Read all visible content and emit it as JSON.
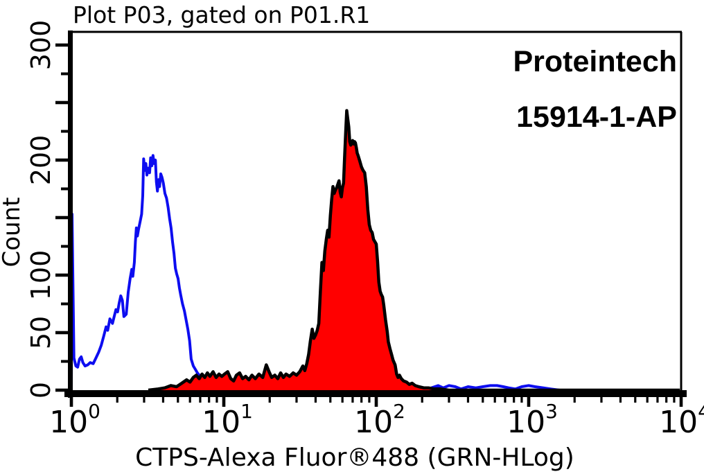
{
  "title": "Plot P03, gated on P01.R1",
  "watermark": {
    "line1": "Proteintech",
    "line2": "15914-1-AP"
  },
  "colors": {
    "control_curve": "#0d0df0",
    "sample_fill": "#ff0000",
    "sample_outline": "#000000",
    "axis": "#000000",
    "background": "#ffffff"
  },
  "chart_data": {
    "type": "area",
    "title": "Plot P03, gated on P01.R1",
    "xlabel": "CTPS-Alexa Fluor®488 (GRN-HLog)",
    "ylabel": "Count",
    "x_scale": "log10",
    "xlim": [
      1,
      10000
    ],
    "ylim": [
      0,
      312
    ],
    "grid": false,
    "legend_position": "none",
    "x_major_tick_exponents": [
      0,
      1,
      2,
      3,
      4
    ],
    "x_tick_labels": [
      {
        "base": "10",
        "exp": "0"
      },
      {
        "base": "10",
        "exp": "1"
      },
      {
        "base": "10",
        "exp": "2"
      },
      {
        "base": "10",
        "exp": "3"
      },
      {
        "base": "10",
        "exp": "4"
      }
    ],
    "y_major_ticks": [
      0,
      50,
      100,
      150,
      200,
      250,
      300
    ],
    "y_minor_ticks": [
      25,
      75,
      125,
      175,
      225,
      275
    ],
    "y_labeled_ticks": [
      0,
      50,
      100,
      200,
      300
    ],
    "series": [
      {
        "name": "control-blue-outline",
        "style": "line",
        "color": "#0d0df0",
        "points": [
          [
            1.0,
            0
          ],
          [
            1.01,
            153
          ],
          [
            1.02,
            110
          ],
          [
            1.04,
            28
          ],
          [
            1.07,
            21
          ],
          [
            1.1,
            20
          ],
          [
            1.13,
            27
          ],
          [
            1.16,
            29
          ],
          [
            1.19,
            24
          ],
          [
            1.23,
            21
          ],
          [
            1.28,
            22
          ],
          [
            1.33,
            24
          ],
          [
            1.39,
            23
          ],
          [
            1.45,
            28
          ],
          [
            1.51,
            33
          ],
          [
            1.57,
            39
          ],
          [
            1.63,
            47
          ],
          [
            1.69,
            55
          ],
          [
            1.73,
            52
          ],
          [
            1.79,
            62
          ],
          [
            1.86,
            58
          ],
          [
            1.91,
            64
          ],
          [
            1.96,
            70
          ],
          [
            2.01,
            68
          ],
          [
            2.06,
            76
          ],
          [
            2.11,
            82
          ],
          [
            2.16,
            78
          ],
          [
            2.21,
            64
          ],
          [
            2.29,
            66
          ],
          [
            2.36,
            85
          ],
          [
            2.43,
            97
          ],
          [
            2.49,
            105
          ],
          [
            2.53,
            99
          ],
          [
            2.59,
            111
          ],
          [
            2.63,
            129
          ],
          [
            2.67,
            141
          ],
          [
            2.71,
            134
          ],
          [
            2.76,
            140
          ],
          [
            2.83,
            147
          ],
          [
            2.89,
            153
          ],
          [
            2.94,
            169
          ],
          [
            2.98,
            201
          ],
          [
            3.03,
            191
          ],
          [
            3.08,
            197
          ],
          [
            3.13,
            187
          ],
          [
            3.19,
            193
          ],
          [
            3.26,
            189
          ],
          [
            3.31,
            202
          ],
          [
            3.37,
            195
          ],
          [
            3.43,
            204
          ],
          [
            3.49,
            197
          ],
          [
            3.56,
            200
          ],
          [
            3.61,
            181
          ],
          [
            3.67,
            173
          ],
          [
            3.73,
            183
          ],
          [
            3.79,
            177
          ],
          [
            3.86,
            188
          ],
          [
            3.93,
            185
          ],
          [
            4.01,
            180
          ],
          [
            4.11,
            171
          ],
          [
            4.21,
            167
          ],
          [
            4.31,
            159
          ],
          [
            4.41,
            149
          ],
          [
            4.51,
            141
          ],
          [
            4.61,
            129
          ],
          [
            4.71,
            119
          ],
          [
            4.81,
            106
          ],
          [
            4.91,
            101
          ],
          [
            5.01,
            97
          ],
          [
            5.11,
            89
          ],
          [
            5.21,
            83
          ],
          [
            5.36,
            75
          ],
          [
            5.51,
            69
          ],
          [
            5.66,
            61
          ],
          [
            5.81,
            53
          ],
          [
            5.96,
            43
          ],
          [
            6.11,
            27
          ],
          [
            6.31,
            21
          ],
          [
            6.51,
            18
          ],
          [
            6.71,
            15
          ],
          [
            7.01,
            12
          ],
          [
            7.41,
            9
          ],
          [
            7.81,
            6
          ],
          [
            8.31,
            4
          ],
          [
            9.0,
            3
          ],
          [
            10,
            2
          ],
          [
            12,
            1
          ],
          [
            15,
            1
          ],
          [
            20,
            1
          ],
          [
            25,
            0
          ],
          [
            40,
            0
          ],
          [
            80,
            0
          ],
          [
            150,
            0
          ],
          [
            200,
            1
          ],
          [
            230,
            2
          ],
          [
            255,
            4
          ],
          [
            275,
            2
          ],
          [
            300,
            4
          ],
          [
            330,
            3
          ],
          [
            360,
            1
          ],
          [
            400,
            3
          ],
          [
            450,
            2
          ],
          [
            500,
            3
          ],
          [
            560,
            4
          ],
          [
            620,
            4
          ],
          [
            680,
            3
          ],
          [
            740,
            2
          ],
          [
            820,
            1
          ],
          [
            900,
            3
          ],
          [
            1000,
            4
          ],
          [
            1100,
            3
          ],
          [
            1250,
            2
          ],
          [
            1400,
            1
          ],
          [
            1600,
            0
          ],
          [
            3000,
            0
          ],
          [
            9500,
            0
          ]
        ]
      },
      {
        "name": "sample-red-filled",
        "style": "filled-line",
        "fill": "#ff0000",
        "color": "#000000",
        "points": [
          [
            3.2,
            0
          ],
          [
            3.7,
            1
          ],
          [
            4.1,
            2
          ],
          [
            4.5,
            4
          ],
          [
            4.9,
            3
          ],
          [
            5.3,
            6
          ],
          [
            5.7,
            9
          ],
          [
            6.0,
            7
          ],
          [
            6.3,
            11
          ],
          [
            6.6,
            13
          ],
          [
            6.9,
            10
          ],
          [
            7.2,
            14
          ],
          [
            7.5,
            11
          ],
          [
            7.8,
            15
          ],
          [
            8.1,
            12
          ],
          [
            8.5,
            16
          ],
          [
            8.9,
            11
          ],
          [
            9.3,
            14
          ],
          [
            9.7,
            12
          ],
          [
            10.1,
            14
          ],
          [
            10.6,
            16
          ],
          [
            11.1,
            10
          ],
          [
            11.6,
            8
          ],
          [
            12.1,
            13
          ],
          [
            12.7,
            15
          ],
          [
            13.3,
            10
          ],
          [
            13.9,
            12
          ],
          [
            14.6,
            9
          ],
          [
            15.3,
            13
          ],
          [
            16.1,
            10
          ],
          [
            17,
            14
          ],
          [
            18,
            11
          ],
          [
            19,
            22
          ],
          [
            19.8,
            16
          ],
          [
            20.6,
            11
          ],
          [
            21.6,
            13
          ],
          [
            22.6,
            10
          ],
          [
            23.6,
            15
          ],
          [
            24.6,
            11
          ],
          [
            25.6,
            14
          ],
          [
            27,
            12
          ],
          [
            28.5,
            15
          ],
          [
            30,
            13
          ],
          [
            31.5,
            16
          ],
          [
            33,
            21
          ],
          [
            34,
            17
          ],
          [
            35,
            23
          ],
          [
            36,
            31
          ],
          [
            37,
            43
          ],
          [
            38,
            53
          ],
          [
            39,
            45
          ],
          [
            40,
            48
          ],
          [
            41,
            52
          ],
          [
            42,
            58
          ],
          [
            43,
            86
          ],
          [
            44,
            111
          ],
          [
            45,
            104
          ],
          [
            46,
            121
          ],
          [
            47,
            131
          ],
          [
            48,
            139
          ],
          [
            49,
            133
          ],
          [
            50,
            152
          ],
          [
            51,
            166
          ],
          [
            52,
            177
          ],
          [
            53,
            171
          ],
          [
            54,
            174
          ],
          [
            55,
            176
          ],
          [
            56,
            179
          ],
          [
            57,
            182
          ],
          [
            58,
            172
          ],
          [
            59,
            168
          ],
          [
            60,
            176
          ],
          [
            61,
            180
          ],
          [
            62,
            202
          ],
          [
            63,
            224
          ],
          [
            64,
            243
          ],
          [
            65,
            236
          ],
          [
            66,
            229
          ],
          [
            67,
            216
          ],
          [
            68,
            213
          ],
          [
            69,
            215
          ],
          [
            70,
            217
          ],
          [
            71,
            214
          ],
          [
            72,
            216
          ],
          [
            73,
            215
          ],
          [
            74,
            211
          ],
          [
            75,
            206
          ],
          [
            76,
            204
          ],
          [
            78,
            199
          ],
          [
            80,
            194
          ],
          [
            82,
            191
          ],
          [
            84,
            189
          ],
          [
            86,
            177
          ],
          [
            88,
            157
          ],
          [
            90,
            144
          ],
          [
            92,
            139
          ],
          [
            94,
            137
          ],
          [
            96,
            131
          ],
          [
            98,
            129
          ],
          [
            100,
            127
          ],
          [
            102,
            112
          ],
          [
            104,
            94
          ],
          [
            106,
            86
          ],
          [
            108,
            83
          ],
          [
            110,
            81
          ],
          [
            112,
            74
          ],
          [
            115,
            61
          ],
          [
            118,
            51
          ],
          [
            120,
            42
          ],
          [
            123,
            36
          ],
          [
            126,
            31
          ],
          [
            129,
            26
          ],
          [
            133,
            22
          ],
          [
            136,
            14
          ],
          [
            139,
            11
          ],
          [
            142,
            13
          ],
          [
            146,
            10
          ],
          [
            151,
            8
          ],
          [
            158,
            7
          ],
          [
            165,
            5
          ],
          [
            172,
            6
          ],
          [
            180,
            4
          ],
          [
            190,
            3
          ],
          [
            205,
            2
          ],
          [
            220,
            2
          ],
          [
            240,
            1
          ],
          [
            265,
            1
          ],
          [
            300,
            0
          ],
          [
            500,
            0
          ],
          [
            9800,
            0
          ]
        ]
      }
    ]
  }
}
